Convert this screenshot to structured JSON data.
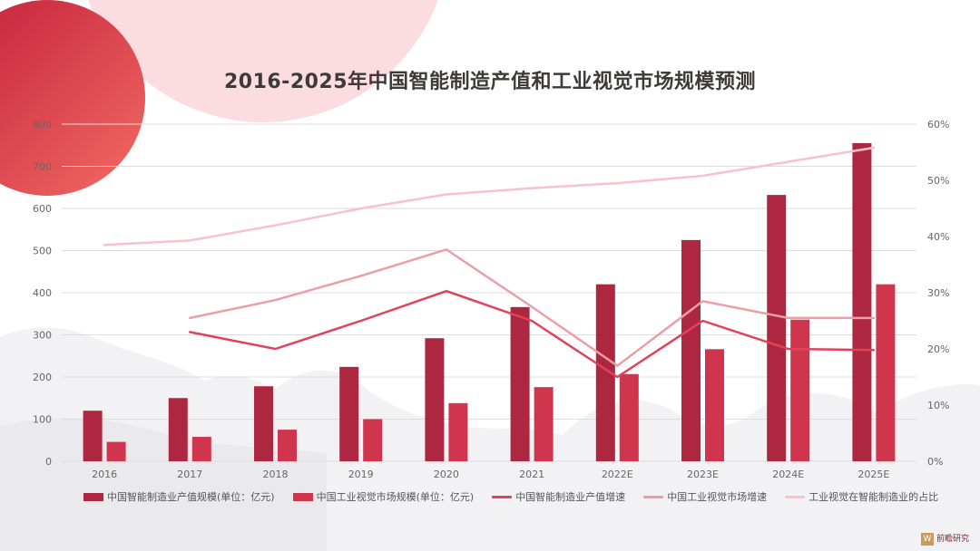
{
  "title": "2016-2025年中国智能制造产值和工业视觉市场规模预测",
  "legend": [
    "中国智能制造业产值规模(单位：亿元)",
    "中国工业视觉市场规模(单位：亿元)",
    "中国智能制造业产值增速",
    "中国工业视觉市场增速",
    "工业视觉在智能制造业的占比"
  ],
  "logo": {
    "mark": "W",
    "text": "前瞻研究"
  },
  "colors": {
    "bar1": "#ad2740",
    "bar2": "#d0354e",
    "line1": "#e0425a",
    "line2": "#eb9fa4",
    "line3": "#f5c3c8",
    "grid": "#dcdcdc",
    "axis_text": "#666666"
  },
  "chart_data": {
    "type": "bar",
    "categories": [
      "2016",
      "2017",
      "2018",
      "2019",
      "2020",
      "2021",
      "2022E",
      "2023E",
      "2024E",
      "2025E"
    ],
    "y_left": {
      "min": 0,
      "max": 800,
      "ticks": [
        0,
        100,
        200,
        300,
        400,
        500,
        600,
        700,
        800
      ]
    },
    "y_right": {
      "min": 0,
      "max": 60,
      "ticks": [
        "0%",
        "10%",
        "20%",
        "30%",
        "40%",
        "50%",
        "60%"
      ]
    },
    "grid": true,
    "legend_position": "bottom",
    "series": [
      {
        "name": "中国智能制造业产值规模(单位：亿元)",
        "type": "bar",
        "axis": "left",
        "values": [
          120,
          150,
          178,
          224,
          292,
          366,
          420,
          525,
          632,
          755
        ]
      },
      {
        "name": "中国工业视觉市场规模(单位：亿元)",
        "type": "bar",
        "axis": "left",
        "values": [
          46,
          58,
          75,
          100,
          138,
          176,
          207,
          266,
          336,
          420
        ]
      },
      {
        "name": "中国智能制造业产值增速",
        "type": "line",
        "axis": "right",
        "values": [
          null,
          23,
          20,
          25,
          30.3,
          25,
          15,
          25,
          20,
          19.8
        ]
      },
      {
        "name": "中国工业视觉市场增速",
        "type": "line",
        "axis": "right",
        "values": [
          null,
          25.5,
          28.7,
          33,
          37.7,
          27.5,
          17,
          28.5,
          25.5,
          25.5
        ]
      },
      {
        "name": "工业视觉在智能制造业的占比",
        "type": "line",
        "axis": "right",
        "values": [
          38.5,
          39.3,
          42,
          45,
          47.5,
          48.6,
          49.5,
          50.8,
          53.3,
          55.8
        ]
      }
    ]
  }
}
